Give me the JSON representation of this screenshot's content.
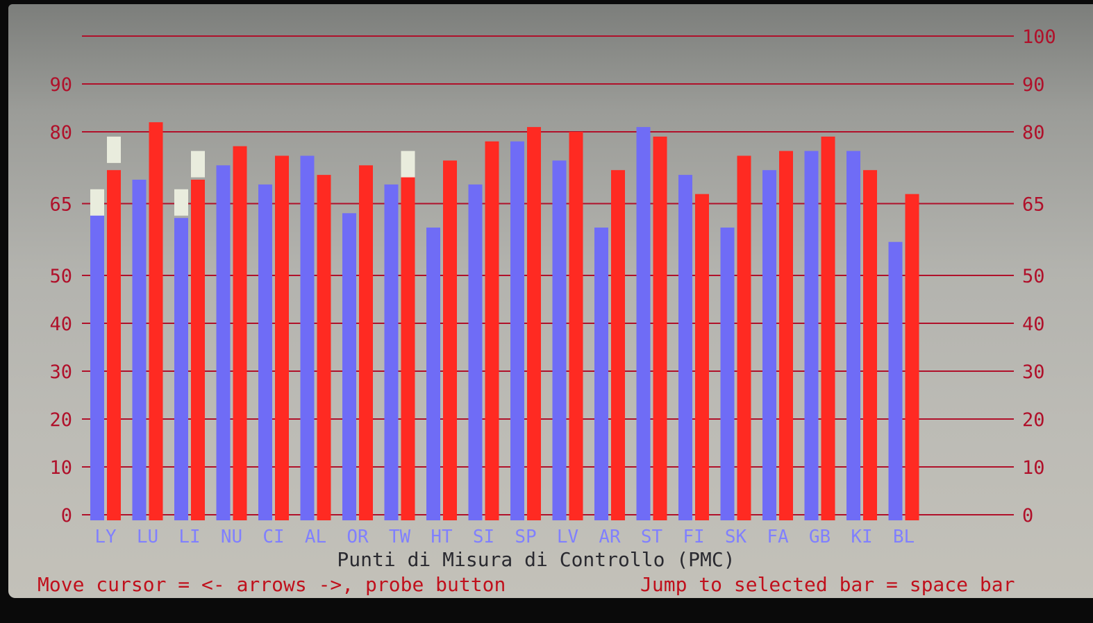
{
  "colors": {
    "series_a": "#6f6cf6",
    "series_b": "#ff2a22",
    "marker": "#e9ecdd",
    "axis": "#b0102a",
    "category_label": "#8080ff"
  },
  "chart_data": {
    "type": "bar",
    "categories": [
      "LY",
      "LU",
      "LI",
      "NU",
      "CI",
      "AL",
      "OR",
      "TW",
      "HT",
      "SI",
      "SP",
      "LV",
      "AR",
      "ST",
      "FI",
      "SK",
      "FA",
      "GB",
      "KI",
      "BL"
    ],
    "series": [
      {
        "values": [
          64,
          70,
          62,
          73,
          69,
          75,
          63,
          69,
          60,
          69,
          78,
          74,
          60,
          81,
          71,
          60,
          72,
          76,
          76,
          57
        ]
      },
      {
        "values": [
          72,
          82,
          70,
          77,
          75,
          71,
          73,
          72,
          74,
          78,
          81,
          80,
          72,
          79,
          67,
          75,
          76,
          79,
          72,
          67
        ]
      }
    ],
    "markers": [
      {
        "category": "LY",
        "series": 0,
        "value": 68
      },
      {
        "category": "LY",
        "series": 1,
        "value": 79
      },
      {
        "category": "LI",
        "series": 0,
        "value": 68
      },
      {
        "category": "LI",
        "series": 1,
        "value": 76
      },
      {
        "category": "TW",
        "series": 1,
        "value": 76
      }
    ],
    "y_ticks_left": [
      "0",
      "10",
      "20",
      "30",
      "40",
      "50",
      "65",
      "80",
      "90"
    ],
    "y_ticks_right": [
      "0",
      "10",
      "20",
      "30",
      "40",
      "50",
      "65",
      "80",
      "90",
      "100"
    ],
    "ylim": [
      0,
      100
    ],
    "xlabel": "Punti di Misura di Controllo (PMC)",
    "grid": true,
    "legend": null
  },
  "footer": {
    "left": "Move cursor = <- arrows ->, probe button",
    "right": "Jump to selected bar = space bar"
  }
}
